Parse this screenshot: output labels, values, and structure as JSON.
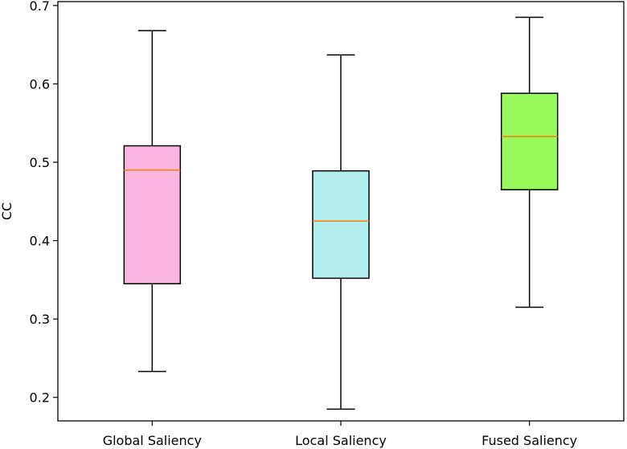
{
  "chart_data": {
    "type": "box",
    "title": "",
    "xlabel": "",
    "ylabel": "CC",
    "ylim": [
      0.17,
      0.705
    ],
    "yticks": [
      0.2,
      0.3,
      0.4,
      0.5,
      0.6,
      0.7
    ],
    "ytick_labels": [
      "0.2",
      "0.3",
      "0.4",
      "0.5",
      "0.6",
      "0.7"
    ],
    "grid": false,
    "categories": [
      "Global Saliency",
      "Local Saliency",
      "Fused Saliency"
    ],
    "boxes": [
      {
        "category": "Global Saliency",
        "whisker_low": 0.233,
        "q1": 0.345,
        "median": 0.49,
        "q3": 0.521,
        "whisker_high": 0.668,
        "color": "#f9b4e0"
      },
      {
        "category": "Local Saliency",
        "whisker_low": 0.185,
        "q1": 0.352,
        "median": 0.425,
        "q3": 0.489,
        "whisker_high": 0.637,
        "color": "#b3eeed"
      },
      {
        "category": "Fused Saliency",
        "whisker_low": 0.315,
        "q1": 0.465,
        "median": 0.533,
        "q3": 0.588,
        "whisker_high": 0.685,
        "color": "#99f85c"
      }
    ],
    "median_color": "#ff7f0e"
  }
}
